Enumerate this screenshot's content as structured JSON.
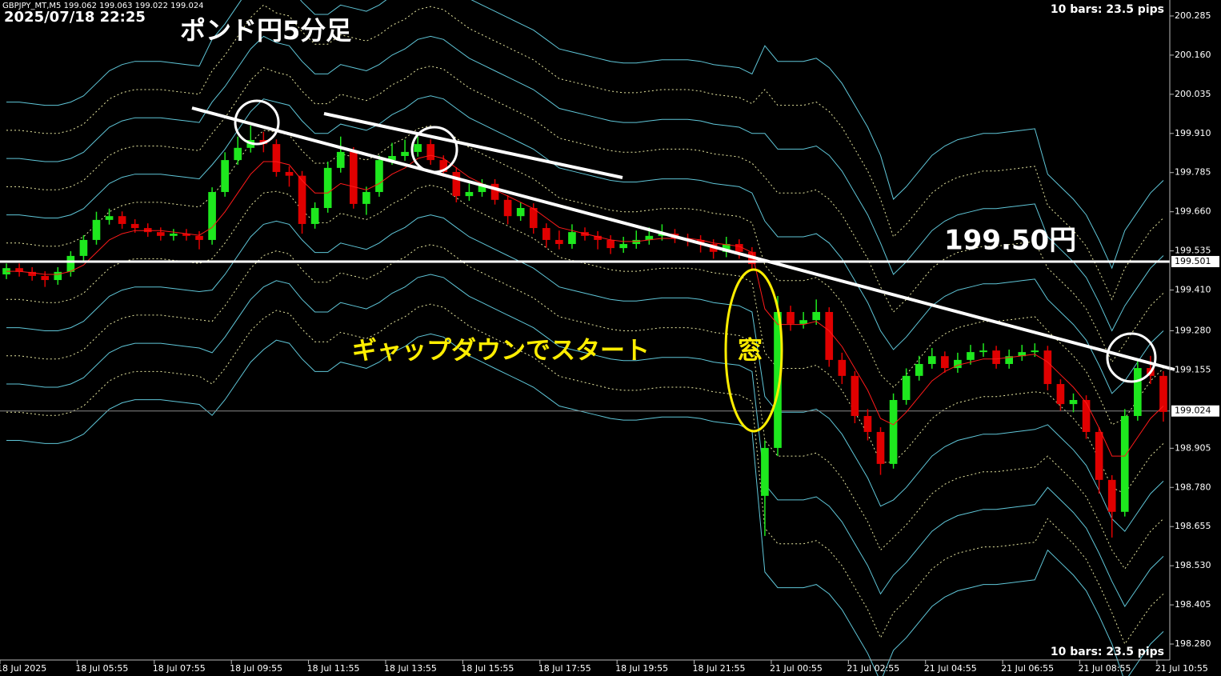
{
  "chart_data": {
    "type": "candlestick",
    "title": "GBPJPY_MT,M5  199.062 199.063 199.022 199.024",
    "timestamp": "2025/07/18 22:25",
    "annotations": {
      "chart_name": "ポンド円5分足",
      "level_note": "199.50円",
      "gap_note": "ギャップダウンでスタート",
      "window_note": "窓",
      "bars_info_top": "10 bars: 23.5 pips",
      "bars_info_bottom": "10 bars: 23.5 pips"
    },
    "x": [
      "18 Jul 2025",
      null,
      null,
      null,
      null,
      null,
      "18 Jul 05:55",
      null,
      null,
      null,
      null,
      null,
      "18 Jul 07:55",
      null,
      null,
      null,
      null,
      null,
      "18 Jul 09:55",
      null,
      null,
      null,
      null,
      null,
      "18 Jul 11:55",
      null,
      null,
      null,
      null,
      null,
      "18 Jul 13:55",
      null,
      null,
      null,
      null,
      null,
      "18 Jul 15:55",
      null,
      null,
      null,
      null,
      null,
      "18 Jul 17:55",
      null,
      null,
      null,
      null,
      null,
      "18 Jul 19:55",
      null,
      null,
      null,
      null,
      null,
      "18 Jul 21:55",
      null,
      null,
      null,
      null,
      null,
      "21 Jul 00:55",
      null,
      null,
      null,
      null,
      null,
      "21 Jul 02:55",
      null,
      null,
      null,
      null,
      null,
      "21 Jul 04:55",
      null,
      null,
      null,
      null,
      null,
      "21 Jul 06:55",
      null,
      null,
      null,
      null,
      null,
      "21 Jul 08:55",
      null,
      null,
      null,
      null,
      null,
      "21 Jul 10:55"
    ],
    "open": [
      199.46,
      199.48,
      199.468,
      199.455,
      199.442,
      199.468,
      199.519,
      199.57,
      199.634,
      199.646,
      199.621,
      199.608,
      199.595,
      199.583,
      199.59,
      199.583,
      199.57,
      199.723,
      199.825,
      199.864,
      199.889,
      199.876,
      199.787,
      199.775,
      199.621,
      199.672,
      199.8,
      199.851,
      199.685,
      199.723,
      199.825,
      199.838,
      199.851,
      199.876,
      199.825,
      199.787,
      199.71,
      199.723,
      199.749,
      199.698,
      199.646,
      199.672,
      199.608,
      199.57,
      199.557,
      199.595,
      199.583,
      199.57,
      199.544,
      199.557,
      199.57,
      199.583,
      199.59,
      199.575,
      199.57,
      199.557,
      199.532,
      199.557,
      199.532,
      198.753,
      198.906,
      199.34,
      199.302,
      199.314,
      199.34,
      199.187,
      199.136,
      199.008,
      198.957,
      198.855,
      199.059,
      199.136,
      199.174,
      199.199,
      199.161,
      199.187,
      199.212,
      199.217,
      199.174,
      199.199,
      199.212,
      199.217,
      199.11,
      199.046,
      199.059,
      198.957,
      198.804,
      198.702,
      199.008,
      199.161,
      199.136
    ],
    "high": [
      199.495,
      199.495,
      199.483,
      199.47,
      199.483,
      199.534,
      199.585,
      199.66,
      199.67,
      199.661,
      199.636,
      199.623,
      199.61,
      199.605,
      199.605,
      199.598,
      199.738,
      199.85,
      199.9,
      199.935,
      199.915,
      199.891,
      199.805,
      199.79,
      199.69,
      199.82,
      199.9,
      199.866,
      199.74,
      199.84,
      199.88,
      199.89,
      199.9,
      199.891,
      199.84,
      199.802,
      199.75,
      199.764,
      199.764,
      199.713,
      199.69,
      199.687,
      199.623,
      199.6,
      199.62,
      199.61,
      199.598,
      199.585,
      199.58,
      199.6,
      199.61,
      199.62,
      199.605,
      199.59,
      199.585,
      199.572,
      199.58,
      199.572,
      199.547,
      198.93,
      199.391,
      199.36,
      199.34,
      199.38,
      199.355,
      199.21,
      199.151,
      199.03,
      198.972,
      199.08,
      199.16,
      199.2,
      199.225,
      199.214,
      199.21,
      199.235,
      199.24,
      199.232,
      199.22,
      199.235,
      199.24,
      199.232,
      199.125,
      199.08,
      199.074,
      198.972,
      198.819,
      199.03,
      199.19,
      199.2,
      199.151
    ],
    "low": [
      199.445,
      199.453,
      199.44,
      199.42,
      199.427,
      199.453,
      199.504,
      199.555,
      199.619,
      199.606,
      199.593,
      199.58,
      199.568,
      199.568,
      199.568,
      199.54,
      199.555,
      199.708,
      199.81,
      199.849,
      199.85,
      199.772,
      199.74,
      199.59,
      199.606,
      199.657,
      199.785,
      199.67,
      199.65,
      199.708,
      199.81,
      199.823,
      199.836,
      199.81,
      199.772,
      199.69,
      199.695,
      199.708,
      199.683,
      199.62,
      199.631,
      199.59,
      199.545,
      199.54,
      199.542,
      199.568,
      199.54,
      199.525,
      199.529,
      199.542,
      199.555,
      199.568,
      199.56,
      199.55,
      199.53,
      199.51,
      199.515,
      199.51,
      199.475,
      198.625,
      198.88,
      199.28,
      199.287,
      199.299,
      199.165,
      199.11,
      198.985,
      198.93,
      198.82,
      198.84,
      199.044,
      199.121,
      199.159,
      199.146,
      199.146,
      199.172,
      199.197,
      199.159,
      199.159,
      199.184,
      199.197,
      199.09,
      199.025,
      199.02,
      198.935,
      198.76,
      198.62,
      198.687,
      198.993,
      199.11,
      198.99
    ],
    "close": [
      199.48,
      199.468,
      199.455,
      199.442,
      199.468,
      199.519,
      199.57,
      199.634,
      199.646,
      199.621,
      199.608,
      199.595,
      199.583,
      199.59,
      199.583,
      199.57,
      199.723,
      199.825,
      199.864,
      199.889,
      199.876,
      199.787,
      199.775,
      199.621,
      199.672,
      199.8,
      199.851,
      199.685,
      199.723,
      199.825,
      199.838,
      199.851,
      199.876,
      199.825,
      199.787,
      199.71,
      199.723,
      199.749,
      199.698,
      199.646,
      199.672,
      199.608,
      199.57,
      199.557,
      199.595,
      199.583,
      199.57,
      199.544,
      199.557,
      199.57,
      199.583,
      199.59,
      199.575,
      199.57,
      199.557,
      199.532,
      199.557,
      199.532,
      199.493,
      198.906,
      199.34,
      199.302,
      199.314,
      199.34,
      199.187,
      199.136,
      199.008,
      198.957,
      198.855,
      199.059,
      199.136,
      199.174,
      199.199,
      199.161,
      199.187,
      199.212,
      199.217,
      199.174,
      199.199,
      199.212,
      199.217,
      199.11,
      199.046,
      199.059,
      198.957,
      198.804,
      198.702,
      199.008,
      199.161,
      199.136,
      199.021
    ],
    "ma": [
      199.47,
      199.47,
      199.465,
      199.46,
      199.46,
      199.47,
      199.49,
      199.53,
      199.57,
      199.59,
      199.6,
      199.6,
      199.6,
      199.595,
      199.59,
      199.585,
      199.61,
      199.66,
      199.72,
      199.78,
      199.82,
      199.82,
      199.81,
      199.76,
      199.72,
      199.72,
      199.75,
      199.74,
      199.73,
      199.75,
      199.78,
      199.8,
      199.83,
      199.84,
      199.83,
      199.8,
      199.77,
      199.75,
      199.73,
      199.71,
      199.69,
      199.67,
      199.64,
      199.61,
      199.6,
      199.59,
      199.58,
      199.57,
      199.565,
      199.565,
      199.57,
      199.575,
      199.575,
      199.575,
      199.57,
      199.56,
      199.555,
      199.55,
      199.53,
      199.35,
      199.3,
      199.3,
      199.3,
      199.31,
      199.28,
      199.23,
      199.16,
      199.09,
      199.0,
      198.98,
      199.02,
      199.07,
      199.12,
      199.15,
      199.17,
      199.18,
      199.19,
      199.19,
      199.195,
      199.2,
      199.205,
      199.18,
      199.14,
      199.1,
      199.05,
      198.97,
      198.88,
      198.88,
      198.94,
      199.0,
      199.04
    ],
    "deviation": [
      0.09,
      0.09,
      0.09,
      0.09,
      0.09,
      0.09,
      0.09,
      0.09,
      0.09,
      0.09,
      0.09,
      0.09,
      0.09,
      0.09,
      0.09,
      0.09,
      0.1,
      0.1,
      0.1,
      0.1,
      0.1,
      0.095,
      0.095,
      0.095,
      0.095,
      0.095,
      0.095,
      0.095,
      0.095,
      0.095,
      0.095,
      0.095,
      0.095,
      0.095,
      0.095,
      0.095,
      0.095,
      0.095,
      0.095,
      0.095,
      0.095,
      0.095,
      0.095,
      0.095,
      0.095,
      0.095,
      0.095,
      0.095,
      0.095,
      0.095,
      0.095,
      0.095,
      0.095,
      0.095,
      0.095,
      0.095,
      0.095,
      0.095,
      0.095,
      0.14,
      0.14,
      0.14,
      0.14,
      0.14,
      0.14,
      0.14,
      0.14,
      0.14,
      0.14,
      0.12,
      0.12,
      0.12,
      0.12,
      0.12,
      0.12,
      0.12,
      0.12,
      0.12,
      0.12,
      0.12,
      0.12,
      0.1,
      0.1,
      0.1,
      0.1,
      0.1,
      0.1,
      0.12,
      0.12,
      0.12,
      0.12
    ],
    "band_multipliers": [
      1,
      2,
      3,
      4,
      5,
      6
    ],
    "up_color": "#1ee81e",
    "down_color": "#e00000",
    "ma_color": "#ff1a1a",
    "band_colors": [
      "#e6e6a0",
      "#5fc6d8"
    ],
    "ylim": [
      198.229,
      200.336
    ],
    "yticks": [
      200.285,
      {
        "value": 200.16,
        "label": "200.160"
      },
      200.035,
      {
        "value": 199.91,
        "label": "199.910"
      },
      199.785,
      {
        "value": 199.66,
        "label": "199.660"
      },
      199.535,
      {
        "value": 199.41,
        "label": "199.410"
      },
      {
        "value": 199.28,
        "label": "199.280"
      },
      199.155,
      198.905,
      {
        "value": 198.78,
        "label": "198.780"
      },
      198.655,
      {
        "value": 198.53,
        "label": "198.530"
      },
      198.405,
      {
        "value": 198.28,
        "label": "198.280"
      }
    ],
    "level_line": 199.501,
    "current_price": 199.024
  }
}
